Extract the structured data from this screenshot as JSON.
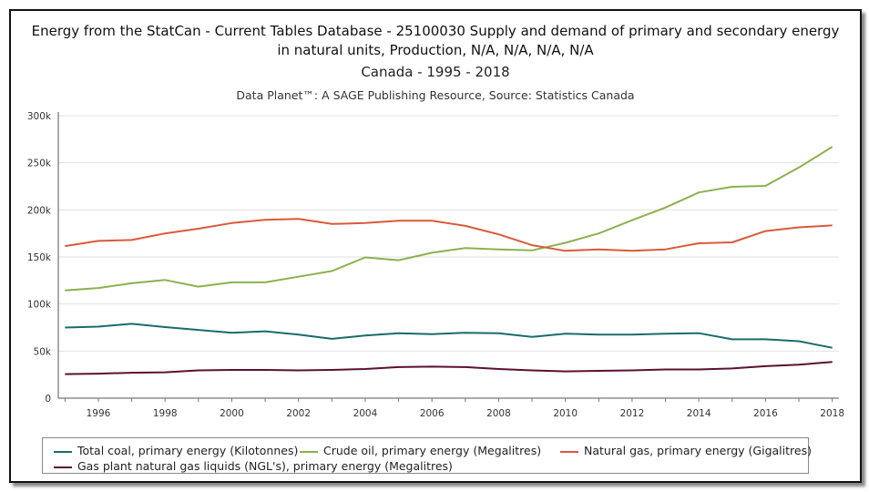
{
  "title": "Energy from the StatCan - Current Tables Database - 25100030 Supply and demand of primary and secondary energy in natural units, Production, N/A, N/A, N/A, N/A",
  "subtitle": "Canada - 1995 - 2018",
  "source": "Data Planet™: A SAGE Publishing Resource, Source: Statistics Canada",
  "chart_data": {
    "type": "line",
    "title": "Energy from the StatCan - Current Tables Database - 25100030 Supply and demand of primary and secondary energy in natural units, Production, N/A, N/A, N/A, N/A",
    "xlabel": "",
    "ylabel": "",
    "x": [
      1995,
      1996,
      1997,
      1998,
      1999,
      2000,
      2001,
      2002,
      2003,
      2004,
      2005,
      2006,
      2007,
      2008,
      2009,
      2010,
      2011,
      2012,
      2013,
      2014,
      2015,
      2016,
      2017,
      2018
    ],
    "xticks": [
      1996,
      1998,
      2000,
      2002,
      2004,
      2006,
      2008,
      2010,
      2012,
      2014,
      2016,
      2018
    ],
    "ylim": [
      0,
      300000
    ],
    "yticks": [
      0,
      50000,
      100000,
      150000,
      200000,
      250000,
      300000
    ],
    "ytick_labels": [
      "0",
      "50k",
      "100k",
      "150k",
      "200k",
      "250k",
      "300k"
    ],
    "grid": "horizontal",
    "legend_position": "bottom",
    "series": [
      {
        "name": "Total coal, primary energy (Kilotonnes)",
        "color": "#1b6b6b",
        "values": [
          75000,
          76000,
          79000,
          75500,
          72500,
          69500,
          71000,
          67500,
          63000,
          66500,
          69000,
          68000,
          69500,
          69000,
          65000,
          68500,
          67500,
          67500,
          68500,
          69000,
          62500,
          62500,
          60500,
          53500
        ]
      },
      {
        "name": "Crude oil, primary energy (Megalitres)",
        "color": "#8db04f",
        "values": [
          114500,
          117000,
          122000,
          125500,
          118500,
          123000,
          123000,
          129000,
          135000,
          149500,
          146500,
          154500,
          159500,
          158000,
          157000,
          165000,
          175000,
          189000,
          202500,
          218500,
          224500,
          225500,
          245000,
          267000
        ]
      },
      {
        "name": "Natural gas, primary energy (Gigalitres)",
        "color": "#d95a3b",
        "values": [
          161500,
          167000,
          168000,
          175000,
          180000,
          186000,
          189500,
          190500,
          185000,
          186000,
          188500,
          188500,
          183000,
          174000,
          162500,
          156500,
          158000,
          156500,
          158000,
          164500,
          165500,
          177500,
          181500,
          183500
        ]
      },
      {
        "name": "Gas plant natural gas liquids (NGL's), primary energy (Megalitres)",
        "color": "#5c1030",
        "values": [
          25500,
          26000,
          27000,
          27500,
          29500,
          30000,
          30000,
          29500,
          30000,
          31000,
          33000,
          33500,
          33000,
          31000,
          29500,
          28500,
          29000,
          29500,
          30500,
          30500,
          31500,
          34000,
          35500,
          38500
        ]
      }
    ]
  }
}
